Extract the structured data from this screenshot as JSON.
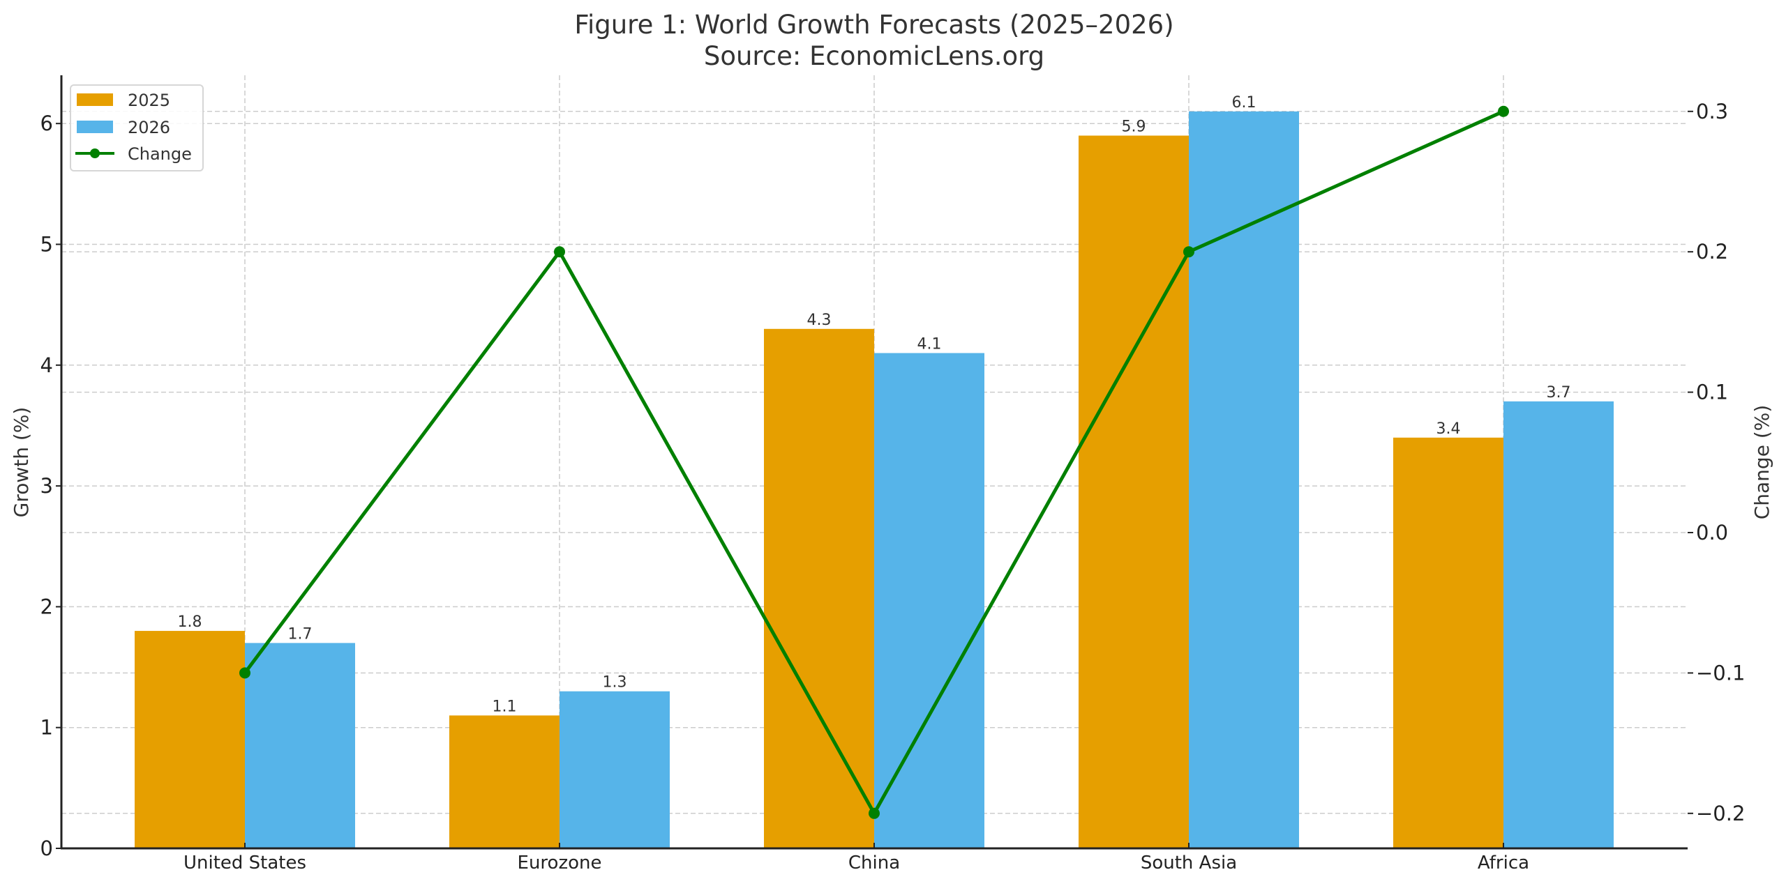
{
  "chart_data": {
    "type": "bar",
    "title": "Figure 1: World Growth Forecasts (2025–2026)",
    "subtitle": "Source: EconomicLens.org",
    "categories": [
      "United States",
      "Eurozone",
      "China",
      "South Asia",
      "Africa"
    ],
    "series": [
      {
        "name": "2025",
        "type": "bar",
        "axis": "left",
        "color": "#E69F00",
        "values": [
          1.8,
          1.1,
          4.3,
          5.9,
          3.4
        ]
      },
      {
        "name": "2026",
        "type": "bar",
        "axis": "left",
        "color": "#56B4E9",
        "values": [
          1.7,
          1.3,
          4.1,
          6.1,
          3.7
        ]
      },
      {
        "name": "Change",
        "type": "line",
        "axis": "right",
        "color": "#008000",
        "values": [
          -0.1,
          0.2,
          -0.2,
          0.2,
          0.3
        ]
      }
    ],
    "value_labels": {
      "2025": [
        "1.8",
        "1.1",
        "4.3",
        "5.9",
        "3.4"
      ],
      "2026": [
        "1.7",
        "1.3",
        "4.1",
        "6.1",
        "3.7"
      ]
    },
    "xlabel": "",
    "ylabel": "Growth (%)",
    "ylabel_right": "Change (%)",
    "ylim": [
      0,
      6.4
    ],
    "ylim_right": [
      -0.225,
      0.328
    ],
    "yticks": [
      "0",
      "1",
      "2",
      "3",
      "4",
      "5",
      "6"
    ],
    "yticks_right": [
      "−0.2",
      "−0.1",
      "0.0",
      "0.1",
      "0.2",
      "0.3"
    ],
    "grid": true,
    "legend_position": "upper left"
  },
  "legend": {
    "items": [
      {
        "label": "2025",
        "kind": "patch",
        "color": "#E69F00"
      },
      {
        "label": "2026",
        "kind": "patch",
        "color": "#56B4E9"
      },
      {
        "label": "Change",
        "kind": "line",
        "color": "#008000"
      }
    ]
  }
}
